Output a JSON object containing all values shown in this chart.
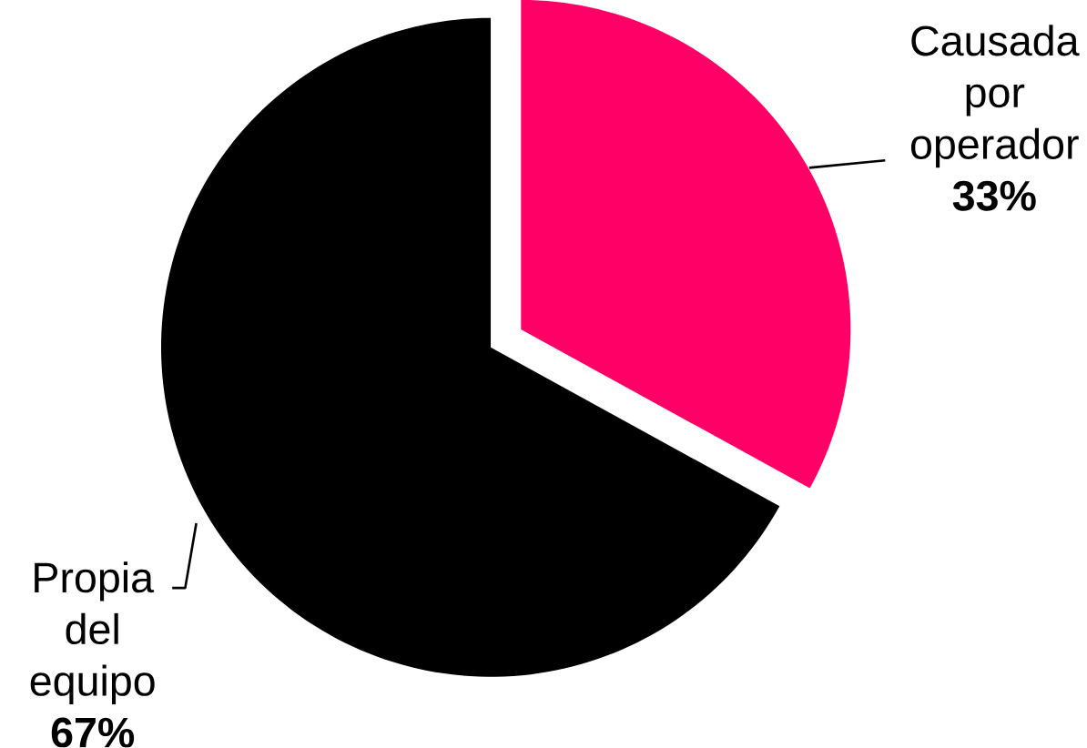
{
  "chart_data": {
    "type": "pie",
    "categories": [
      "Causada por operador",
      "Propia del equipo"
    ],
    "values": [
      33,
      67
    ],
    "colors": [
      "#ff0066",
      "#000000"
    ],
    "value_labels": [
      "33%",
      "67%"
    ]
  }
}
